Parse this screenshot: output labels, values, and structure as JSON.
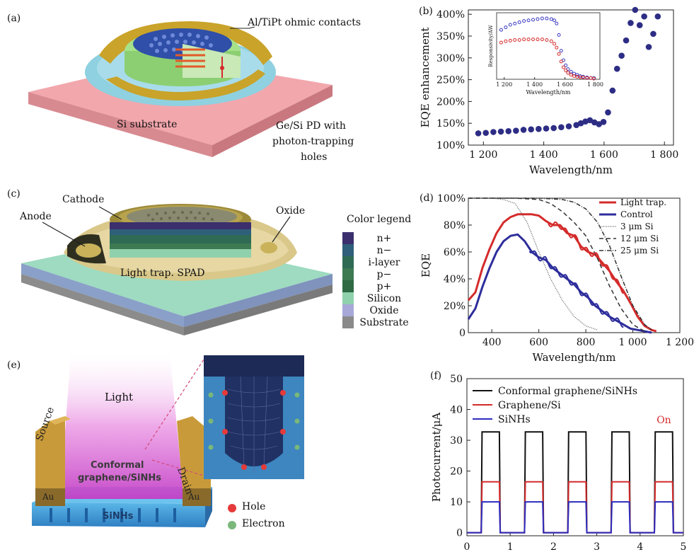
{
  "panels": {
    "a": {
      "label": "(a)",
      "contacts": "Al/TiPt ohmic contacts",
      "substrate": "Si substrate",
      "pd_l1": "Ge/Si PD with",
      "pd_l2": "photon-trapping",
      "pd_l3": "holes"
    },
    "b": {
      "label": "(b)"
    },
    "c": {
      "label": "(c)",
      "cathode": "Cathode",
      "anode": "Anode",
      "oxide": "Oxide",
      "spad": "Light trap. SPAD",
      "legend_title": "Color legend",
      "legend": [
        {
          "name": "n+",
          "color": "#3b2f6e"
        },
        {
          "name": "n−",
          "color": "#2f5f7a"
        },
        {
          "name": "i-layer",
          "color": "#2f6a55"
        },
        {
          "name": "p−",
          "color": "#3d7a52"
        },
        {
          "name": "p+",
          "color": "#2f6a45"
        },
        {
          "name": "Silicon",
          "color": "#8fd1ad"
        },
        {
          "name": "Oxide",
          "color": "#a7a8d8"
        },
        {
          "name": "Substrate",
          "color": "#8a8a8a"
        }
      ]
    },
    "d": {
      "label": "(d)"
    },
    "e": {
      "label": "(e)",
      "light": "Light",
      "source": "Source",
      "drain": "Drain",
      "au": "Au",
      "conformal_l1": "Conformal",
      "conformal_l2": "graphene/SiNHs",
      "sinhs": "SiNHs",
      "hole": "Hole",
      "electron": "Electron"
    },
    "f": {
      "label": "(f)"
    }
  },
  "chart_data": [
    {
      "id": "b",
      "type": "scatter",
      "xlabel": "Wavelength/nm",
      "ylabel": "EQE enhancement",
      "xlim": [
        1150,
        1830
      ],
      "ylim": [
        100,
        410
      ],
      "xticks": [
        1200,
        1400,
        1600,
        1800
      ],
      "xtick_labels": [
        "1 200",
        "1 400",
        "1 600",
        "1 800"
      ],
      "yticks": [
        100,
        150,
        200,
        250,
        300,
        350,
        400
      ],
      "ytick_labels": [
        "100%",
        "150%",
        "200%",
        "250%",
        "300%",
        "350%",
        "400%"
      ],
      "color": "#2d2d85",
      "x": [
        1183,
        1208,
        1233,
        1258,
        1283,
        1308,
        1333,
        1358,
        1383,
        1408,
        1433,
        1458,
        1483,
        1508,
        1523,
        1538,
        1553,
        1568,
        1583,
        1598,
        1613,
        1628,
        1643,
        1658,
        1673,
        1688,
        1703,
        1718,
        1733,
        1748,
        1763,
        1778
      ],
      "y": [
        127,
        128,
        130,
        131,
        132,
        133,
        135,
        136,
        137,
        138,
        139,
        141,
        143,
        146,
        150,
        154,
        157,
        152,
        148,
        153,
        175,
        225,
        275,
        305,
        340,
        380,
        410,
        375,
        395,
        325,
        355,
        395
      ],
      "inset": {
        "xlabel": "Wavelength/nm",
        "ylabel": "Responsivity/AW",
        "xlim": [
          1150,
          1830
        ],
        "ylim": [
          0,
          1.05
        ],
        "xticks": [
          1200,
          1400,
          1600,
          1800
        ],
        "xtick_labels": [
          "1 200",
          "1 400",
          "1 600",
          "1 800"
        ],
        "series": [
          {
            "color": "#3a3ac0",
            "x": [
              1180,
              1210,
              1240,
              1270,
              1300,
              1330,
              1360,
              1390,
              1420,
              1450,
              1480,
              1510,
              1530,
              1545,
              1560,
              1575,
              1590,
              1605,
              1620,
              1640,
              1660,
              1680,
              1700,
              1720,
              1745,
              1770,
              1790
            ],
            "y": [
              0.78,
              0.82,
              0.86,
              0.88,
              0.9,
              0.92,
              0.93,
              0.94,
              0.95,
              0.96,
              0.96,
              0.95,
              0.93,
              0.88,
              0.7,
              0.45,
              0.3,
              0.22,
              0.16,
              0.12,
              0.09,
              0.07,
              0.05,
              0.04,
              0.03,
              0.02,
              0.02
            ]
          },
          {
            "color": "#d42b2b",
            "x": [
              1180,
              1210,
              1240,
              1270,
              1300,
              1330,
              1360,
              1390,
              1420,
              1450,
              1480,
              1510,
              1530,
              1545,
              1560,
              1575,
              1590,
              1605,
              1620,
              1640,
              1660,
              1680,
              1700,
              1720,
              1745,
              1770,
              1790
            ],
            "y": [
              0.58,
              0.6,
              0.61,
              0.62,
              0.62,
              0.63,
              0.63,
              0.63,
              0.63,
              0.63,
              0.62,
              0.6,
              0.56,
              0.5,
              0.4,
              0.28,
              0.19,
              0.14,
              0.1,
              0.07,
              0.05,
              0.04,
              0.03,
              0.03,
              0.02,
              0.02,
              0.01
            ]
          }
        ]
      }
    },
    {
      "id": "d",
      "type": "line",
      "xlabel": "Wavelength/nm",
      "ylabel": "EQE",
      "xlim": [
        300,
        1200
      ],
      "ylim": [
        0,
        100
      ],
      "xticks": [
        400,
        600,
        800,
        1000,
        1200
      ],
      "xtick_labels": [
        "400",
        "600",
        "800",
        "1 000",
        "1 200"
      ],
      "yticks": [
        0,
        20,
        40,
        60,
        80,
        100
      ],
      "ytick_labels": [
        "0",
        "20%",
        "40%",
        "60%",
        "80%",
        "100%"
      ],
      "series": [
        {
          "name": "Light trap.",
          "color": "#d42b2b",
          "width": 3,
          "dash": "",
          "x": [
            300,
            330,
            360,
            390,
            420,
            450,
            480,
            510,
            540,
            570,
            600,
            630,
            660,
            690,
            720,
            750,
            780,
            810,
            840,
            870,
            900,
            930,
            960,
            990,
            1020,
            1050,
            1080,
            1100
          ],
          "y": [
            24,
            30,
            48,
            62,
            74,
            82,
            86,
            88,
            88,
            88,
            87,
            83,
            80,
            80,
            74,
            72,
            64,
            60,
            58,
            52,
            46,
            38,
            31,
            22,
            12,
            5,
            2,
            1
          ]
        },
        {
          "name": "Control",
          "color": "#2d2d9c",
          "width": 3,
          "dash": "",
          "x": [
            300,
            330,
            360,
            390,
            420,
            450,
            480,
            510,
            540,
            570,
            600,
            630,
            660,
            690,
            720,
            750,
            780,
            810,
            840,
            870,
            900,
            930,
            960,
            990,
            1020,
            1050,
            1080
          ],
          "y": [
            10,
            18,
            34,
            48,
            60,
            68,
            72,
            73,
            68,
            60,
            56,
            54,
            48,
            44,
            40,
            36,
            30,
            26,
            20,
            16,
            12,
            9,
            6,
            3,
            2,
            1,
            0
          ]
        },
        {
          "name": "3 μm Si",
          "color": "#555",
          "width": 1.2,
          "dash": "1,1.5",
          "x": [
            300,
            400,
            450,
            500,
            550,
            600,
            650,
            700,
            750,
            800,
            850
          ],
          "y": [
            100,
            100,
            99,
            96,
            82,
            60,
            40,
            24,
            12,
            5,
            2
          ]
        },
        {
          "name": "12 μm Si",
          "color": "#333",
          "width": 1.5,
          "dash": "6,4",
          "x": [
            300,
            500,
            600,
            650,
            700,
            750,
            800,
            850,
            900,
            950,
            1000,
            1050
          ],
          "y": [
            100,
            100,
            99,
            96,
            90,
            82,
            72,
            55,
            35,
            18,
            6,
            1
          ]
        },
        {
          "name": "25 μm Si",
          "color": "#333",
          "width": 1.5,
          "dash": "6,2,1,2",
          "x": [
            300,
            600,
            700,
            750,
            800,
            850,
            900,
            950,
            1000,
            1050,
            1080
          ],
          "y": [
            100,
            100,
            99,
            97,
            92,
            82,
            65,
            42,
            20,
            6,
            2
          ]
        }
      ]
    },
    {
      "id": "f",
      "type": "line",
      "ylabel": "Photocurrent/μA",
      "xlim": [
        0,
        5
      ],
      "ylim": [
        -1,
        50
      ],
      "xticks": [
        0,
        1,
        2,
        3,
        4,
        5
      ],
      "xtick_labels": [
        "0",
        "1",
        "2",
        "3",
        "4",
        "5"
      ],
      "yticks": [
        0,
        10,
        20,
        30,
        40,
        50
      ],
      "ytick_labels": [
        "0",
        "10",
        "20",
        "30",
        "40",
        "50"
      ],
      "annotation": "On",
      "on_intervals": [
        [
          0.33,
          0.77
        ],
        [
          1.33,
          1.77
        ],
        [
          2.33,
          2.77
        ],
        [
          3.33,
          3.77
        ],
        [
          4.33,
          4.77
        ]
      ],
      "series": [
        {
          "name": "Conformal graphene/SiNHs",
          "color": "#111",
          "level": 32.7
        },
        {
          "name": "Graphene/Si",
          "color": "#d42b2b",
          "level": 16.5
        },
        {
          "name": "SiNHs",
          "color": "#2d2dbf",
          "level": 10
        }
      ]
    }
  ]
}
